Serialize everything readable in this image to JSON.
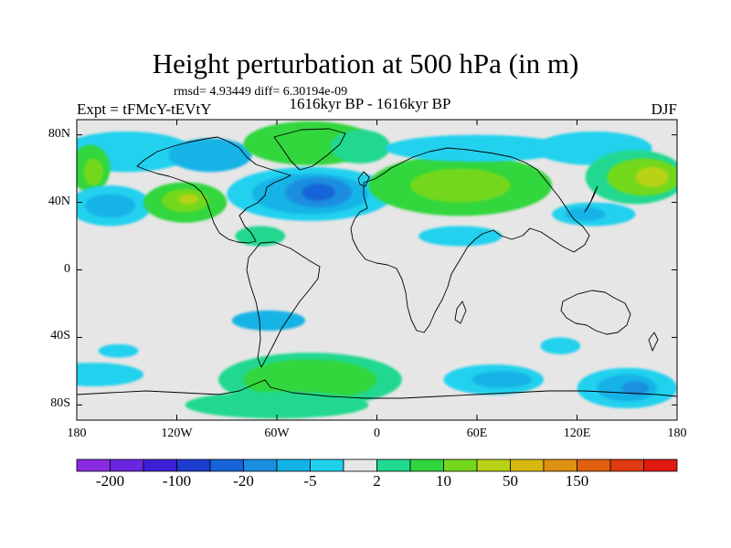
{
  "title": "Height perturbation at 500 hPa (in m)",
  "stats": "rmsd= 4.93449 diff= 6.30194e-09",
  "experiment": "Expt = tFMcY-tEVtY",
  "period": "1616kyr BP - 1616kyr BP",
  "season": "DJF",
  "y_axis": {
    "ticks": [
      {
        "label": "80N",
        "lat": 80
      },
      {
        "label": "40N",
        "lat": 40
      },
      {
        "label": "0",
        "lat": 0
      },
      {
        "label": "40S",
        "lat": -40
      },
      {
        "label": "80S",
        "lat": -80
      }
    ]
  },
  "x_axis": {
    "ticks": [
      {
        "label": "180",
        "lon": -180
      },
      {
        "label": "120W",
        "lon": -120
      },
      {
        "label": "60W",
        "lon": -60
      },
      {
        "label": "0",
        "lon": 0
      },
      {
        "label": "60E",
        "lon": 60
      },
      {
        "label": "120E",
        "lon": 120
      },
      {
        "label": "180",
        "lon": 180
      }
    ]
  },
  "colorbar": {
    "colors": [
      "#8a2be2",
      "#6a26e0",
      "#3f1fd6",
      "#1d3cd0",
      "#1565d8",
      "#1a8ee0",
      "#12b3e6",
      "#20d1ee",
      "#e6e6e6",
      "#20d890",
      "#31d63e",
      "#73d81c",
      "#b8d215",
      "#d8b810",
      "#e09010",
      "#e06010",
      "#e03a10",
      "#e01a10"
    ],
    "labels": [
      {
        "text": "-200",
        "boundary": 1
      },
      {
        "text": "-100",
        "boundary": 3
      },
      {
        "text": "-20",
        "boundary": 5
      },
      {
        "text": "-5",
        "boundary": 7
      },
      {
        "text": "2",
        "boundary": 9
      },
      {
        "text": "10",
        "boundary": 11
      },
      {
        "text": "50",
        "boundary": 13
      },
      {
        "text": "150",
        "boundary": 15
      }
    ]
  },
  "anomaly_regions": [
    {
      "color": "#20d1ee",
      "lon": -150,
      "lat": 70,
      "rlon": 40,
      "rlat": 12
    },
    {
      "color": "#12b3e6",
      "lon": -100,
      "lat": 68,
      "rlon": 25,
      "rlat": 10
    },
    {
      "color": "#31d63e",
      "lon": -172,
      "lat": 60,
      "rlon": 12,
      "rlat": 14
    },
    {
      "color": "#73d81c",
      "lon": -170,
      "lat": 58,
      "rlon": 6,
      "rlat": 8
    },
    {
      "color": "#20d1ee",
      "lon": -160,
      "lat": 38,
      "rlon": 25,
      "rlat": 12
    },
    {
      "color": "#12b3e6",
      "lon": -160,
      "lat": 38,
      "rlon": 15,
      "rlat": 7
    },
    {
      "color": "#31d63e",
      "lon": -115,
      "lat": 40,
      "rlon": 25,
      "rlat": 12
    },
    {
      "color": "#73d81c",
      "lon": -115,
      "lat": 41,
      "rlon": 14,
      "rlat": 7
    },
    {
      "color": "#b8d215",
      "lon": -113,
      "lat": 42,
      "rlon": 6,
      "rlat": 3
    },
    {
      "color": "#31d63e",
      "lon": -40,
      "lat": 75,
      "rlon": 40,
      "rlat": 13
    },
    {
      "color": "#20d890",
      "lon": -10,
      "lat": 73,
      "rlon": 18,
      "rlat": 10
    },
    {
      "color": "#20d1ee",
      "lon": -40,
      "lat": 45,
      "rlon": 50,
      "rlat": 16
    },
    {
      "color": "#12b3e6",
      "lon": -40,
      "lat": 45,
      "rlon": 35,
      "rlat": 12
    },
    {
      "color": "#1a8ee0",
      "lon": -35,
      "lat": 46,
      "rlon": 20,
      "rlat": 9
    },
    {
      "color": "#1565d8",
      "lon": -35,
      "lat": 46,
      "rlon": 10,
      "rlat": 5
    },
    {
      "color": "#20d890",
      "lon": -70,
      "lat": 20,
      "rlon": 15,
      "rlat": 6
    },
    {
      "color": "#31d63e",
      "lon": 50,
      "lat": 50,
      "rlon": 55,
      "rlat": 18
    },
    {
      "color": "#73d81c",
      "lon": 50,
      "lat": 50,
      "rlon": 30,
      "rlat": 10
    },
    {
      "color": "#20d1ee",
      "lon": 60,
      "lat": 72,
      "rlon": 55,
      "rlat": 8
    },
    {
      "color": "#20d1ee",
      "lon": 50,
      "lat": 20,
      "rlon": 25,
      "rlat": 6
    },
    {
      "color": "#20d1ee",
      "lon": 130,
      "lat": 72,
      "rlon": 35,
      "rlat": 10
    },
    {
      "color": "#20d890",
      "lon": 155,
      "lat": 55,
      "rlon": 30,
      "rlat": 16
    },
    {
      "color": "#73d81c",
      "lon": 160,
      "lat": 55,
      "rlon": 22,
      "rlat": 11
    },
    {
      "color": "#b8d215",
      "lon": 165,
      "lat": 55,
      "rlon": 10,
      "rlat": 6
    },
    {
      "color": "#20d1ee",
      "lon": 130,
      "lat": 33,
      "rlon": 25,
      "rlat": 7
    },
    {
      "color": "#12b3e6",
      "lon": 125,
      "lat": 33,
      "rlon": 12,
      "rlat": 4
    },
    {
      "color": "#12b3e6",
      "lon": -65,
      "lat": -30,
      "rlon": 22,
      "rlat": 6
    },
    {
      "color": "#20d1ee",
      "lon": -155,
      "lat": -48,
      "rlon": 12,
      "rlat": 4
    },
    {
      "color": "#20d1ee",
      "lon": 110,
      "lat": -45,
      "rlon": 12,
      "rlat": 5
    },
    {
      "color": "#20d1ee",
      "lon": -170,
      "lat": -62,
      "rlon": 30,
      "rlat": 7
    },
    {
      "color": "#20d890",
      "lon": -40,
      "lat": -65,
      "rlon": 55,
      "rlat": 16
    },
    {
      "color": "#31d63e",
      "lon": -40,
      "lat": -65,
      "rlon": 40,
      "rlat": 12
    },
    {
      "color": "#20d890",
      "lon": -60,
      "lat": -80,
      "rlon": 55,
      "rlat": 8
    },
    {
      "color": "#20d1ee",
      "lon": 70,
      "lat": -65,
      "rlon": 30,
      "rlat": 9
    },
    {
      "color": "#12b3e6",
      "lon": 75,
      "lat": -65,
      "rlon": 18,
      "rlat": 5
    },
    {
      "color": "#20d1ee",
      "lon": 150,
      "lat": -70,
      "rlon": 30,
      "rlat": 12
    },
    {
      "color": "#12b3e6",
      "lon": 150,
      "lat": -70,
      "rlon": 18,
      "rlat": 8
    },
    {
      "color": "#1a8ee0",
      "lon": 155,
      "lat": -70,
      "rlon": 8,
      "rlat": 4
    }
  ]
}
